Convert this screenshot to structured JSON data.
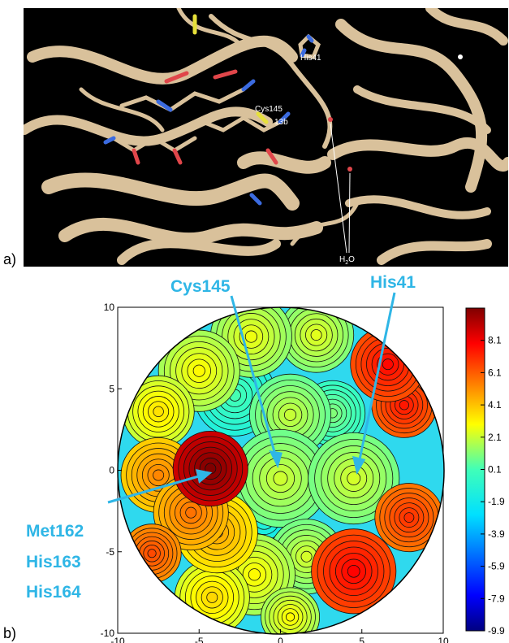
{
  "panel_a": {
    "label": "a)",
    "labels": {
      "his41": "His41",
      "cys145": "Cys145",
      "l13b": "13b",
      "water": "H",
      "water_sub": "2",
      "water_o": "O"
    }
  },
  "panel_b": {
    "label": "b)",
    "callouts": {
      "cys145": "Cys145",
      "his41": "His41",
      "met162": "Met162",
      "his163": "His163",
      "his164": "His164"
    }
  },
  "colors": {
    "callout": "#2fb6e6",
    "ribbon": "#d9c19b",
    "background_a": "#000000"
  },
  "chart_data": {
    "type": "heatmap",
    "x_range": [
      -10,
      10
    ],
    "y_range": [
      -10,
      10
    ],
    "x_ticks": [
      "-10",
      "-5",
      "0",
      "5",
      "10"
    ],
    "y_ticks": [
      "-10",
      "-5",
      "0",
      "5",
      "10"
    ],
    "colorbar": {
      "range": [
        -9.9,
        10.1
      ],
      "ticks": [
        "8.1",
        "6.1",
        "4.1",
        "2.1",
        "0.1",
        "-1.9",
        "-3.9",
        "-5.9",
        "-7.9",
        "-9.9"
      ],
      "tick_values": [
        8.1,
        6.1,
        4.1,
        2.1,
        0.1,
        -1.9,
        -3.9,
        -5.9,
        -7.9,
        -9.9
      ]
    },
    "blobs": [
      {
        "x": 0,
        "y": -0.5,
        "r": 3.0,
        "v": 0.8
      },
      {
        "x": 4.5,
        "y": -0.5,
        "r": 2.8,
        "v": 0.9
      },
      {
        "x": -4.3,
        "y": 0.1,
        "r": 2.3,
        "v": 8.8
      },
      {
        "x": -5.5,
        "y": -2.6,
        "r": 2.3,
        "v": 4.3
      },
      {
        "x": -3.9,
        "y": -3.8,
        "r": 2.5,
        "v": 3.3
      },
      {
        "x": -7.5,
        "y": -0.3,
        "r": 2.3,
        "v": 3.9
      },
      {
        "x": 6.6,
        "y": 6.5,
        "r": 2.3,
        "v": 6.4
      },
      {
        "x": 7.6,
        "y": 4.0,
        "r": 2.0,
        "v": 6.1
      },
      {
        "x": 4.5,
        "y": -6.2,
        "r": 2.6,
        "v": 6.5
      },
      {
        "x": 7.9,
        "y": -2.9,
        "r": 2.1,
        "v": 5.6
      },
      {
        "x": -7.5,
        "y": 3.6,
        "r": 2.2,
        "v": 2.1
      },
      {
        "x": -5.0,
        "y": 6.1,
        "r": 2.5,
        "v": 1.6
      },
      {
        "x": -1.8,
        "y": 8.2,
        "r": 2.5,
        "v": 1.3
      },
      {
        "x": 2.2,
        "y": 8.3,
        "r": 2.3,
        "v": 1.1
      },
      {
        "x": 0.6,
        "y": 3.4,
        "r": 2.5,
        "v": 0.7
      },
      {
        "x": -2.8,
        "y": 4.6,
        "r": 2.5,
        "v": -1.2
      },
      {
        "x": 3.2,
        "y": 3.5,
        "r": 2.0,
        "v": -0.3
      },
      {
        "x": -1.6,
        "y": -6.4,
        "r": 2.5,
        "v": 1.6
      },
      {
        "x": 1.6,
        "y": -5.3,
        "r": 2.3,
        "v": 0.9
      },
      {
        "x": -4.2,
        "y": -7.8,
        "r": 2.3,
        "v": 2.3
      },
      {
        "x": 0.6,
        "y": -9.0,
        "r": 1.8,
        "v": 1.6
      },
      {
        "x": -1.0,
        "y": -3.0,
        "r": 2.2,
        "v": -2.4
      },
      {
        "x": -7.9,
        "y": -5.1,
        "r": 1.8,
        "v": 5.1
      }
    ]
  }
}
